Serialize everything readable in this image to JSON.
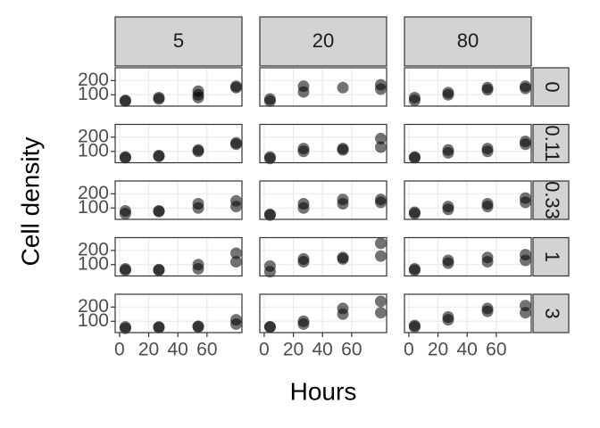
{
  "chart_data": {
    "type": "scatter",
    "xlabel": "Hours",
    "ylabel": "Cell density",
    "columns": [
      "5",
      "20",
      "80"
    ],
    "rows": [
      "0",
      "0.11",
      "0.33",
      "1",
      "3"
    ],
    "xlim": [
      -3,
      84
    ],
    "xticks": [
      0,
      20,
      40,
      60
    ],
    "ylim": [
      20,
      290
    ],
    "yticks": [
      100,
      200
    ],
    "grid": true,
    "color": "#000000",
    "panels": [
      {
        "x": [
          4,
          4,
          27,
          27,
          54,
          54,
          54,
          80,
          80
        ],
        "y": [
          60,
          55,
          70,
          80,
          125,
          100,
          80,
          160,
          150
        ]
      },
      {
        "x": [
          4,
          4,
          27,
          27,
          54,
          80,
          80
        ],
        "y": [
          70,
          55,
          160,
          120,
          150,
          170,
          140
        ]
      },
      {
        "x": [
          4,
          4,
          27,
          27,
          54,
          54,
          80,
          80
        ],
        "y": [
          80,
          60,
          100,
          115,
          135,
          150,
          160,
          145
        ]
      },
      {
        "x": [
          4,
          4,
          27,
          27,
          54,
          54,
          80,
          80
        ],
        "y": [
          55,
          60,
          65,
          70,
          100,
          110,
          150,
          160
        ]
      },
      {
        "x": [
          4,
          4,
          27,
          27,
          54,
          54,
          80,
          80
        ],
        "y": [
          50,
          60,
          100,
          120,
          120,
          110,
          190,
          130
        ]
      },
      {
        "x": [
          4,
          4,
          27,
          27,
          54,
          54,
          80,
          80
        ],
        "y": [
          55,
          60,
          90,
          110,
          100,
          120,
          150,
          170
        ]
      },
      {
        "x": [
          4,
          4,
          27,
          27,
          54,
          54,
          80,
          80
        ],
        "y": [
          60,
          80,
          75,
          80,
          100,
          130,
          110,
          150
        ]
      },
      {
        "x": [
          4,
          4,
          27,
          27,
          54,
          54,
          80,
          80
        ],
        "y": [
          50,
          55,
          100,
          130,
          130,
          160,
          140,
          160
        ]
      },
      {
        "x": [
          4,
          4,
          27,
          27,
          54,
          54,
          80,
          80
        ],
        "y": [
          60,
          70,
          90,
          110,
          110,
          130,
          170,
          140
        ]
      },
      {
        "x": [
          4,
          4,
          27,
          27,
          54,
          54,
          80,
          80
        ],
        "y": [
          60,
          70,
          60,
          65,
          70,
          100,
          120,
          180
        ]
      },
      {
        "x": [
          4,
          4,
          27,
          27,
          54,
          54,
          80,
          80
        ],
        "y": [
          50,
          90,
          120,
          140,
          150,
          140,
          250,
          160
        ]
      },
      {
        "x": [
          4,
          4,
          27,
          27,
          54,
          54,
          80,
          80
        ],
        "y": [
          60,
          70,
          110,
          130,
          120,
          150,
          130,
          170
        ]
      },
      {
        "x": [
          4,
          4,
          27,
          27,
          54,
          54,
          80,
          80
        ],
        "y": [
          50,
          60,
          55,
          60,
          60,
          65,
          80,
          110
        ]
      },
      {
        "x": [
          4,
          4,
          27,
          27,
          54,
          54,
          80,
          80
        ],
        "y": [
          60,
          60,
          80,
          100,
          150,
          190,
          240,
          160
        ]
      },
      {
        "x": [
          4,
          4,
          27,
          27,
          54,
          54,
          80,
          80
        ],
        "y": [
          60,
          70,
          110,
          130,
          170,
          190,
          160,
          210
        ]
      }
    ]
  }
}
